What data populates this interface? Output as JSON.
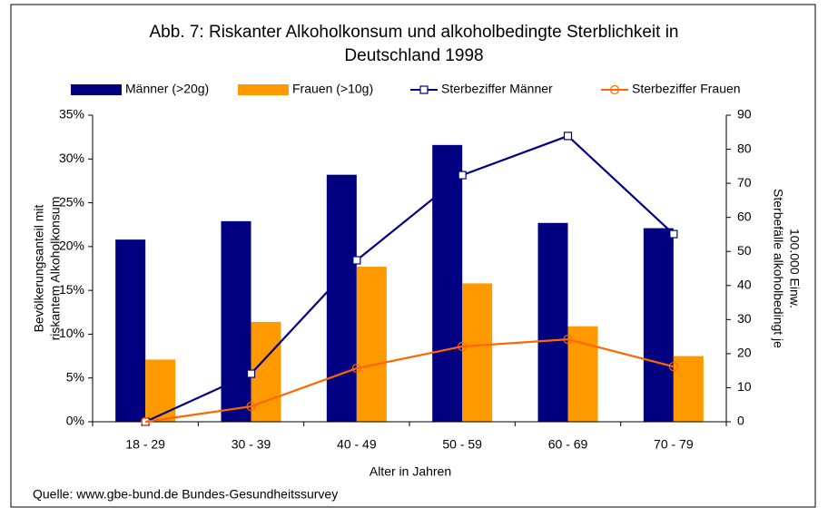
{
  "chart_data": {
    "type": "bar_line",
    "title_lines": [
      "Abb. 7: Riskanter Alkoholkonsum und alkoholbedingte Sterblichkeit in",
      "Deutschland 1998"
    ],
    "categories": [
      "18 - 29",
      "30 - 39",
      "40 - 49",
      "50 - 59",
      "60 - 69",
      "70 - 79"
    ],
    "series": [
      {
        "name": "Männer (>20g)",
        "color": "#000080",
        "kind": "bar",
        "values": [
          20.8,
          22.9,
          28.2,
          31.6,
          22.7,
          22.1
        ]
      },
      {
        "name": "Frauen (>10g)",
        "color": "#ff9900",
        "kind": "bar",
        "values": [
          7.1,
          11.4,
          17.7,
          15.8,
          10.9,
          7.5
        ]
      },
      {
        "name": "Sterbeziffer Männer",
        "color": "#000080",
        "kind": "line",
        "marker": "square",
        "axis": "y2",
        "values": [
          0,
          14.1,
          47.4,
          72.4,
          83.9,
          55.1
        ]
      },
      {
        "name": "Sterbeziffer Frauen",
        "color": "#ff6600",
        "kind": "line",
        "marker": "circle",
        "axis": "y2",
        "values": [
          0,
          4.5,
          15.7,
          22.1,
          24.2,
          16.2
        ]
      }
    ],
    "ylim": [
      0,
      35
    ],
    "yticks": [
      {
        "value": 0,
        "label": "0%"
      },
      {
        "value": 5,
        "label": "5%"
      },
      {
        "value": 10,
        "label": "10%"
      },
      {
        "value": 15,
        "label": "15%"
      },
      {
        "value": 20,
        "label": "20%"
      },
      {
        "value": 25,
        "label": "25%"
      },
      {
        "value": 30,
        "label": "30%"
      },
      {
        "value": 35,
        "label": "35%"
      }
    ],
    "y2lim": [
      0,
      90
    ],
    "y2ticks": [
      0,
      10,
      20,
      30,
      40,
      50,
      60,
      70,
      80,
      90
    ],
    "ylabel_lines": [
      "Bevölkerungsanteil mit",
      "riskantem Alkoholkonsum"
    ],
    "y2label_lines": [
      "Sterbefälle alkoholbedingt je",
      "100.000 Einw."
    ],
    "xlabel": "Alter in Jahren",
    "source": "Quelle: www.gbe-bund.de Bundes-Gesundheitssurvey",
    "legend": "top"
  }
}
